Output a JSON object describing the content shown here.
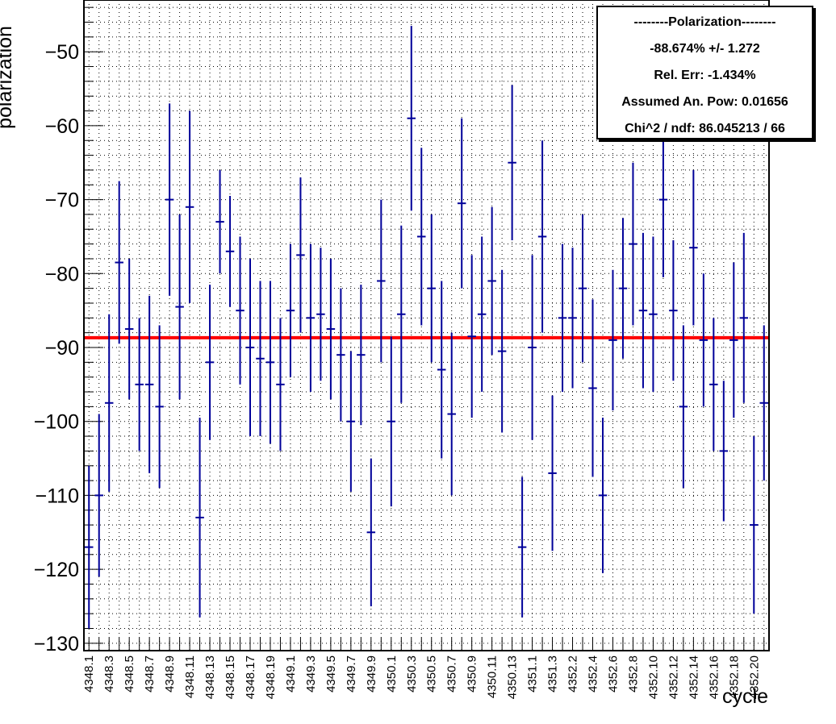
{
  "chart_data": {
    "type": "scatter",
    "ylabel": "polarization",
    "xlabel": "cycle",
    "ylim": [
      -131,
      -43
    ],
    "grid": true,
    "categories": [
      "4348.1",
      "4348.2",
      "4348.3",
      "4348.4",
      "4348.5",
      "4348.6",
      "4348.7",
      "4348.8",
      "4348.9",
      "4348.10",
      "4348.11",
      "4348.12",
      "4348.13",
      "4348.14",
      "4348.15",
      "4348.16",
      "4348.17",
      "4348.18",
      "4348.19",
      "4348.20",
      "4349.1",
      "4349.2",
      "4349.3",
      "4349.4",
      "4349.5",
      "4349.6",
      "4349.7",
      "4349.8",
      "4349.9",
      "4349.10",
      "4350.1",
      "4350.2",
      "4350.3",
      "4350.4",
      "4350.5",
      "4350.6",
      "4350.7",
      "4350.8",
      "4350.9",
      "4350.10",
      "4350.11",
      "4350.12",
      "4350.13",
      "4350.14",
      "4351.1",
      "4351.2",
      "4351.3",
      "4352.1",
      "4352.2",
      "4352.3",
      "4352.4",
      "4352.5",
      "4352.6",
      "4352.7",
      "4352.8",
      "4352.9",
      "4352.10",
      "4352.11",
      "4352.12",
      "4352.13",
      "4352.14",
      "4352.15",
      "4352.16",
      "4352.17",
      "4352.18",
      "4352.19",
      "4352.20",
      "4352.21"
    ],
    "tick_labels": [
      "4348.1",
      "4348.3",
      "4348.5",
      "4348.7",
      "4348.9",
      "4348.11",
      "4348.13",
      "4348.15",
      "4348.17",
      "4348.19",
      "4349.1",
      "4349.3",
      "4349.5",
      "4349.7",
      "4349.9",
      "4350.1",
      "4350.3",
      "4350.5",
      "4350.7",
      "4350.9",
      "4350.11",
      "4350.13",
      "4351.1",
      "4351.3",
      "4352.2",
      "4352.4",
      "4352.6",
      "4352.8",
      "4352.10",
      "4352.12",
      "4352.14",
      "4352.16",
      "4352.18",
      "4352.20"
    ],
    "y_ticks": [
      -130,
      -120,
      -110,
      -100,
      -90,
      -80,
      -70,
      -60,
      -50
    ],
    "series": [
      {
        "values": [
          -117,
          -110,
          -97.5,
          -78.5,
          -87.5,
          -95,
          -95,
          -98,
          -70,
          -84.5,
          -71,
          -113,
          -92,
          -73,
          -77,
          -85,
          -90,
          -91.5,
          -92,
          -95,
          -85,
          -77.5,
          -86,
          -85.5,
          -87.5,
          -91,
          -100,
          -91,
          -115,
          -81,
          -100,
          -85.5,
          -59,
          -75,
          -82,
          -93,
          -99,
          -70.5,
          -88.5,
          -85.5,
          -81,
          -90.5,
          -65,
          -117,
          -90,
          -75,
          -107,
          -86,
          -86,
          -82,
          -95.5,
          -110,
          -89,
          -82,
          -76,
          -85,
          -85.5,
          -70,
          -85,
          -98,
          -76.5,
          -89,
          -95,
          -104,
          -89,
          -86,
          -114,
          -97.5
        ],
        "errors": [
          11,
          11,
          12,
          11,
          9.5,
          9,
          12,
          11,
          13,
          12.5,
          13,
          13.5,
          10.5,
          7,
          7.5,
          10,
          12,
          10.5,
          11,
          9,
          9,
          10.5,
          10,
          9,
          9.5,
          9,
          9.5,
          9.5,
          10,
          11,
          11.5,
          12,
          12.5,
          12,
          10,
          12,
          11,
          11.5,
          11,
          10.5,
          10,
          11,
          10.5,
          9.5,
          12.5,
          13,
          10.5,
          10,
          9.5,
          10,
          12,
          10.5,
          9.5,
          9.5,
          11,
          10.5,
          10.5,
          10.5,
          9.5,
          11,
          10.5,
          9,
          9,
          9.5,
          10.5,
          11.5,
          12,
          10.5
        ],
        "color": "#000099"
      }
    ],
    "fit_line": {
      "value": -88.674,
      "color": "#ff0000"
    }
  },
  "stats": {
    "title": "--------Polarization--------",
    "value": "-88.674% +/- 1.272",
    "rel_err": "Rel. Err: -1.434%",
    "an_pow": "Assumed An. Pow: 0.01656",
    "chi2": "Chi^2 / ndf: 86.045213 / 66"
  }
}
